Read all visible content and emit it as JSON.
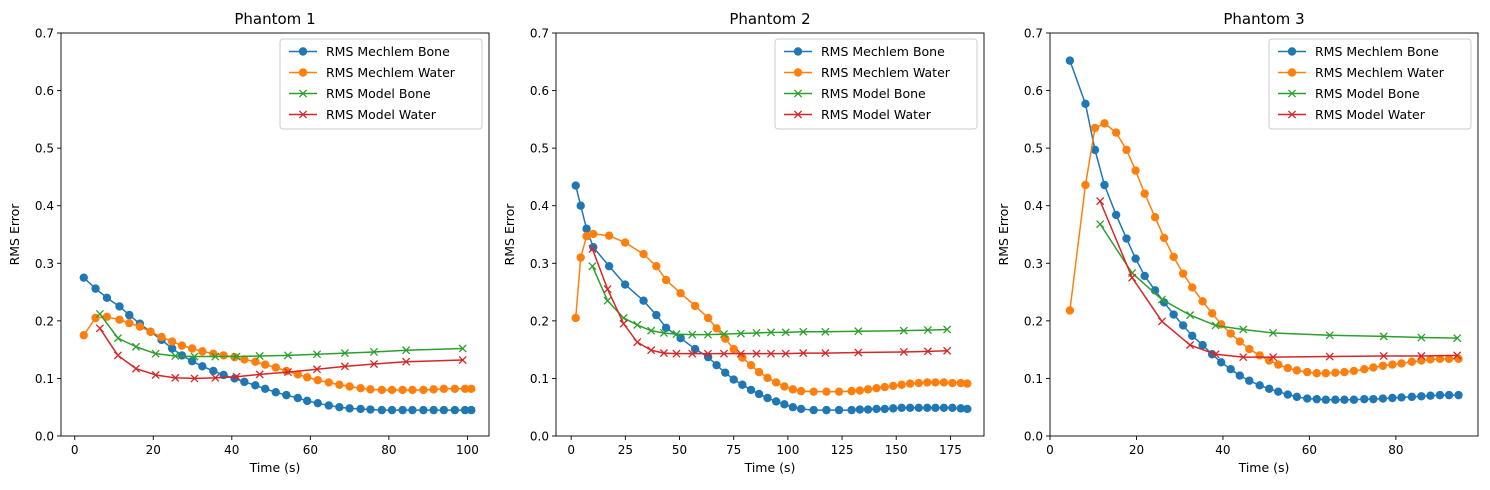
{
  "figure": {
    "colors": {
      "bone_mechlem": "#1f77b4",
      "water_mechlem": "#ff7f0e",
      "bone_model": "#2ca02c",
      "water_model": "#d62728"
    }
  },
  "chart_data": [
    {
      "type": "line",
      "title": "Phantom 1",
      "xlabel": "Time (s)",
      "ylabel": "RMS Error",
      "xlim": [
        -3.5,
        105.5
      ],
      "ylim": [
        0,
        0.7
      ],
      "xticks": [
        0,
        20,
        40,
        60,
        80,
        100
      ],
      "yticks": [
        0.0,
        0.1,
        0.2,
        0.3,
        0.4,
        0.5,
        0.6,
        0.7
      ],
      "legend_position": "top-right",
      "series": [
        {
          "name": "RMS Mechlem Bone",
          "marker": "circle",
          "color": "#1f77b4",
          "x": [
            2.3,
            5.3,
            8.2,
            11.4,
            13.9,
            16.6,
            19.3,
            22.1,
            24.8,
            27.3,
            29.9,
            32.5,
            35.3,
            37.9,
            40.7,
            43.2,
            46.0,
            48.5,
            51.2,
            53.9,
            56.8,
            59.2,
            61.9,
            64.7,
            67.4,
            70.0,
            72.8,
            75.3,
            78.2,
            80.8,
            83.5,
            86.0,
            88.8,
            91.4,
            94.0,
            96.8,
            99.4,
            101.0
          ],
          "y": [
            0.275,
            0.256,
            0.24,
            0.225,
            0.21,
            0.195,
            0.181,
            0.167,
            0.152,
            0.14,
            0.13,
            0.121,
            0.113,
            0.106,
            0.1,
            0.094,
            0.088,
            0.082,
            0.076,
            0.071,
            0.066,
            0.061,
            0.057,
            0.053,
            0.05,
            0.048,
            0.047,
            0.046,
            0.045,
            0.045,
            0.045,
            0.045,
            0.045,
            0.045,
            0.045,
            0.045,
            0.045,
            0.045
          ]
        },
        {
          "name": "RMS Mechlem Water",
          "marker": "circle",
          "color": "#ff7f0e",
          "x": [
            2.3,
            5.3,
            8.2,
            11.4,
            13.9,
            16.6,
            19.3,
            22.1,
            24.8,
            27.3,
            29.9,
            32.5,
            35.3,
            37.9,
            40.7,
            43.2,
            46.0,
            48.5,
            51.2,
            53.9,
            56.8,
            59.2,
            61.9,
            64.7,
            67.4,
            70.0,
            72.8,
            75.3,
            78.2,
            80.8,
            83.5,
            86.0,
            88.8,
            91.4,
            94.0,
            96.8,
            99.4,
            101.0
          ],
          "y": [
            0.175,
            0.205,
            0.207,
            0.202,
            0.196,
            0.19,
            0.181,
            0.172,
            0.164,
            0.157,
            0.152,
            0.147,
            0.143,
            0.14,
            0.137,
            0.133,
            0.129,
            0.124,
            0.119,
            0.113,
            0.107,
            0.102,
            0.097,
            0.093,
            0.089,
            0.086,
            0.083,
            0.081,
            0.08,
            0.08,
            0.08,
            0.08,
            0.08,
            0.081,
            0.082,
            0.082,
            0.082,
            0.082
          ]
        },
        {
          "name": "RMS Model Bone",
          "marker": "x",
          "color": "#2ca02c",
          "x": [
            6.4,
            11.0,
            15.6,
            20.6,
            25.6,
            30.5,
            35.8,
            41.2,
            47.1,
            54.3,
            61.7,
            68.8,
            76.2,
            84.4,
            98.8
          ],
          "y": [
            0.212,
            0.17,
            0.155,
            0.143,
            0.139,
            0.138,
            0.138,
            0.138,
            0.139,
            0.14,
            0.142,
            0.144,
            0.146,
            0.149,
            0.152
          ]
        },
        {
          "name": "RMS Model Water",
          "marker": "x",
          "color": "#d62728",
          "x": [
            6.4,
            11.0,
            15.6,
            20.6,
            25.6,
            30.5,
            35.8,
            41.2,
            47.1,
            54.3,
            61.7,
            68.8,
            76.2,
            84.4,
            98.8
          ],
          "y": [
            0.187,
            0.14,
            0.117,
            0.106,
            0.101,
            0.1,
            0.101,
            0.103,
            0.107,
            0.111,
            0.116,
            0.121,
            0.125,
            0.129,
            0.132
          ]
        }
      ]
    },
    {
      "type": "line",
      "title": "Phantom 2",
      "xlabel": "Time (s)",
      "ylabel": "RMS Error",
      "xlim": [
        -7.0,
        190.5
      ],
      "ylim": [
        0,
        0.7
      ],
      "xticks": [
        0,
        25,
        50,
        75,
        100,
        125,
        150,
        175
      ],
      "yticks": [
        0.0,
        0.1,
        0.2,
        0.3,
        0.4,
        0.5,
        0.6,
        0.7
      ],
      "legend_position": "top-right",
      "series": [
        {
          "name": "RMS Mechlem Bone",
          "marker": "circle",
          "color": "#1f77b4",
          "x": [
            2.1,
            4.4,
            7.1,
            10.2,
            17.5,
            24.9,
            33.4,
            39.3,
            43.8,
            50.5,
            57.2,
            63.2,
            67.1,
            71.1,
            75.0,
            79.0,
            83.0,
            86.7,
            90.6,
            94.6,
            98.4,
            102.3,
            106.1,
            111.9,
            117.8,
            123.6,
            129.4,
            133.2,
            137.0,
            140.9,
            144.7,
            148.6,
            152.5,
            156.4,
            160.4,
            164.3,
            168.1,
            172.0,
            175.9,
            179.8,
            182.8
          ],
          "y": [
            0.435,
            0.4,
            0.36,
            0.328,
            0.295,
            0.263,
            0.235,
            0.21,
            0.188,
            0.17,
            0.151,
            0.137,
            0.123,
            0.11,
            0.098,
            0.089,
            0.08,
            0.073,
            0.066,
            0.06,
            0.055,
            0.05,
            0.047,
            0.045,
            0.045,
            0.045,
            0.045,
            0.046,
            0.046,
            0.047,
            0.047,
            0.048,
            0.049,
            0.049,
            0.049,
            0.049,
            0.049,
            0.049,
            0.049,
            0.048,
            0.047
          ]
        },
        {
          "name": "RMS Mechlem Water",
          "marker": "circle",
          "color": "#ff7f0e",
          "x": [
            2.1,
            4.4,
            7.1,
            10.2,
            17.5,
            24.9,
            33.4,
            39.3,
            43.8,
            50.5,
            57.2,
            63.2,
            67.1,
            71.1,
            75.0,
            79.0,
            83.0,
            86.7,
            90.6,
            94.6,
            98.4,
            102.3,
            106.1,
            111.9,
            117.8,
            123.6,
            129.4,
            133.2,
            137.0,
            140.9,
            144.7,
            148.6,
            152.5,
            156.4,
            160.4,
            164.3,
            168.1,
            172.0,
            175.9,
            179.8,
            182.8
          ],
          "y": [
            0.205,
            0.31,
            0.347,
            0.351,
            0.348,
            0.336,
            0.316,
            0.295,
            0.271,
            0.248,
            0.226,
            0.205,
            0.187,
            0.169,
            0.151,
            0.136,
            0.123,
            0.111,
            0.101,
            0.093,
            0.086,
            0.081,
            0.078,
            0.077,
            0.077,
            0.077,
            0.078,
            0.079,
            0.081,
            0.083,
            0.085,
            0.087,
            0.089,
            0.091,
            0.092,
            0.093,
            0.093,
            0.093,
            0.092,
            0.092,
            0.091
          ]
        },
        {
          "name": "RMS Model Bone",
          "marker": "x",
          "color": "#2ca02c",
          "x": [
            9.8,
            16.8,
            24.2,
            30.5,
            36.9,
            42.8,
            48.6,
            55.9,
            63.1,
            70.5,
            78.3,
            85.5,
            92.2,
            99.0,
            107.1,
            117.3,
            132.5,
            153.5,
            164.6,
            173.5
          ],
          "y": [
            0.295,
            0.235,
            0.205,
            0.193,
            0.183,
            0.179,
            0.177,
            0.176,
            0.176,
            0.177,
            0.178,
            0.179,
            0.18,
            0.18,
            0.181,
            0.181,
            0.182,
            0.183,
            0.184,
            0.185
          ]
        },
        {
          "name": "RMS Model Water",
          "marker": "x",
          "color": "#d62728",
          "x": [
            9.8,
            16.8,
            24.2,
            30.5,
            36.9,
            42.8,
            48.6,
            55.9,
            63.1,
            70.5,
            78.3,
            85.5,
            92.2,
            99.0,
            107.1,
            117.3,
            132.5,
            153.5,
            164.6,
            173.5
          ],
          "y": [
            0.325,
            0.255,
            0.195,
            0.163,
            0.149,
            0.144,
            0.143,
            0.143,
            0.143,
            0.143,
            0.143,
            0.143,
            0.143,
            0.143,
            0.144,
            0.144,
            0.145,
            0.146,
            0.147,
            0.148
          ]
        }
      ]
    },
    {
      "type": "line",
      "title": "Phantom 3",
      "xlabel": "Time (s)",
      "ylabel": "RMS Error",
      "xlim": [
        0,
        99.0
      ],
      "ylim": [
        0,
        0.7
      ],
      "xticks": [
        0,
        20,
        40,
        60,
        80
      ],
      "yticks": [
        0.0,
        0.1,
        0.2,
        0.3,
        0.4,
        0.5,
        0.6,
        0.7
      ],
      "legend_position": "top-right",
      "series": [
        {
          "name": "RMS Mechlem Bone",
          "marker": "circle",
          "color": "#1f77b4",
          "x": [
            4.6,
            8.2,
            10.4,
            12.6,
            15.3,
            17.7,
            19.8,
            21.9,
            24.3,
            26.4,
            28.6,
            30.8,
            32.9,
            35.3,
            37.5,
            39.6,
            41.8,
            43.9,
            46.1,
            48.5,
            50.7,
            52.8,
            55.0,
            57.1,
            59.5,
            61.7,
            63.8,
            66.0,
            68.1,
            70.3,
            72.7,
            74.8,
            77.0,
            79.2,
            81.3,
            83.7,
            85.9,
            88.0,
            90.2,
            92.3,
            94.5
          ],
          "y": [
            0.652,
            0.577,
            0.497,
            0.436,
            0.384,
            0.343,
            0.308,
            0.278,
            0.253,
            0.232,
            0.211,
            0.192,
            0.174,
            0.158,
            0.142,
            0.128,
            0.116,
            0.105,
            0.096,
            0.088,
            0.082,
            0.077,
            0.072,
            0.068,
            0.065,
            0.064,
            0.063,
            0.063,
            0.063,
            0.063,
            0.064,
            0.064,
            0.065,
            0.066,
            0.067,
            0.068,
            0.069,
            0.07,
            0.071,
            0.071,
            0.071
          ]
        },
        {
          "name": "RMS Mechlem Water",
          "marker": "circle",
          "color": "#ff7f0e",
          "x": [
            4.6,
            8.2,
            10.4,
            12.6,
            15.3,
            17.7,
            19.8,
            21.9,
            24.3,
            26.4,
            28.6,
            30.8,
            32.9,
            35.3,
            37.5,
            39.6,
            41.8,
            43.9,
            46.1,
            48.5,
            50.7,
            52.8,
            55.0,
            57.1,
            59.5,
            61.7,
            63.8,
            66.0,
            68.1,
            70.3,
            72.7,
            74.8,
            77.0,
            79.2,
            81.3,
            83.7,
            85.9,
            88.0,
            90.2,
            92.3,
            94.5
          ],
          "y": [
            0.218,
            0.436,
            0.535,
            0.543,
            0.527,
            0.497,
            0.461,
            0.421,
            0.38,
            0.344,
            0.311,
            0.282,
            0.258,
            0.234,
            0.213,
            0.194,
            0.178,
            0.164,
            0.151,
            0.14,
            0.131,
            0.124,
            0.118,
            0.114,
            0.111,
            0.109,
            0.109,
            0.11,
            0.111,
            0.113,
            0.116,
            0.119,
            0.122,
            0.124,
            0.126,
            0.129,
            0.131,
            0.133,
            0.134,
            0.134,
            0.134
          ]
        },
        {
          "name": "RMS Model Bone",
          "marker": "x",
          "color": "#2ca02c",
          "x": [
            11.6,
            19.0,
            25.9,
            32.4,
            38.3,
            44.7,
            51.6,
            64.7,
            77.2,
            85.9,
            94.2
          ],
          "y": [
            0.368,
            0.283,
            0.237,
            0.21,
            0.192,
            0.185,
            0.179,
            0.175,
            0.173,
            0.171,
            0.17
          ]
        },
        {
          "name": "RMS Model Water",
          "marker": "x",
          "color": "#d62728",
          "x": [
            11.6,
            19.0,
            25.9,
            32.4,
            38.3,
            44.7,
            51.6,
            64.7,
            77.2,
            85.9,
            94.2
          ],
          "y": [
            0.408,
            0.275,
            0.199,
            0.158,
            0.142,
            0.137,
            0.137,
            0.138,
            0.139,
            0.139,
            0.14
          ]
        }
      ]
    }
  ]
}
